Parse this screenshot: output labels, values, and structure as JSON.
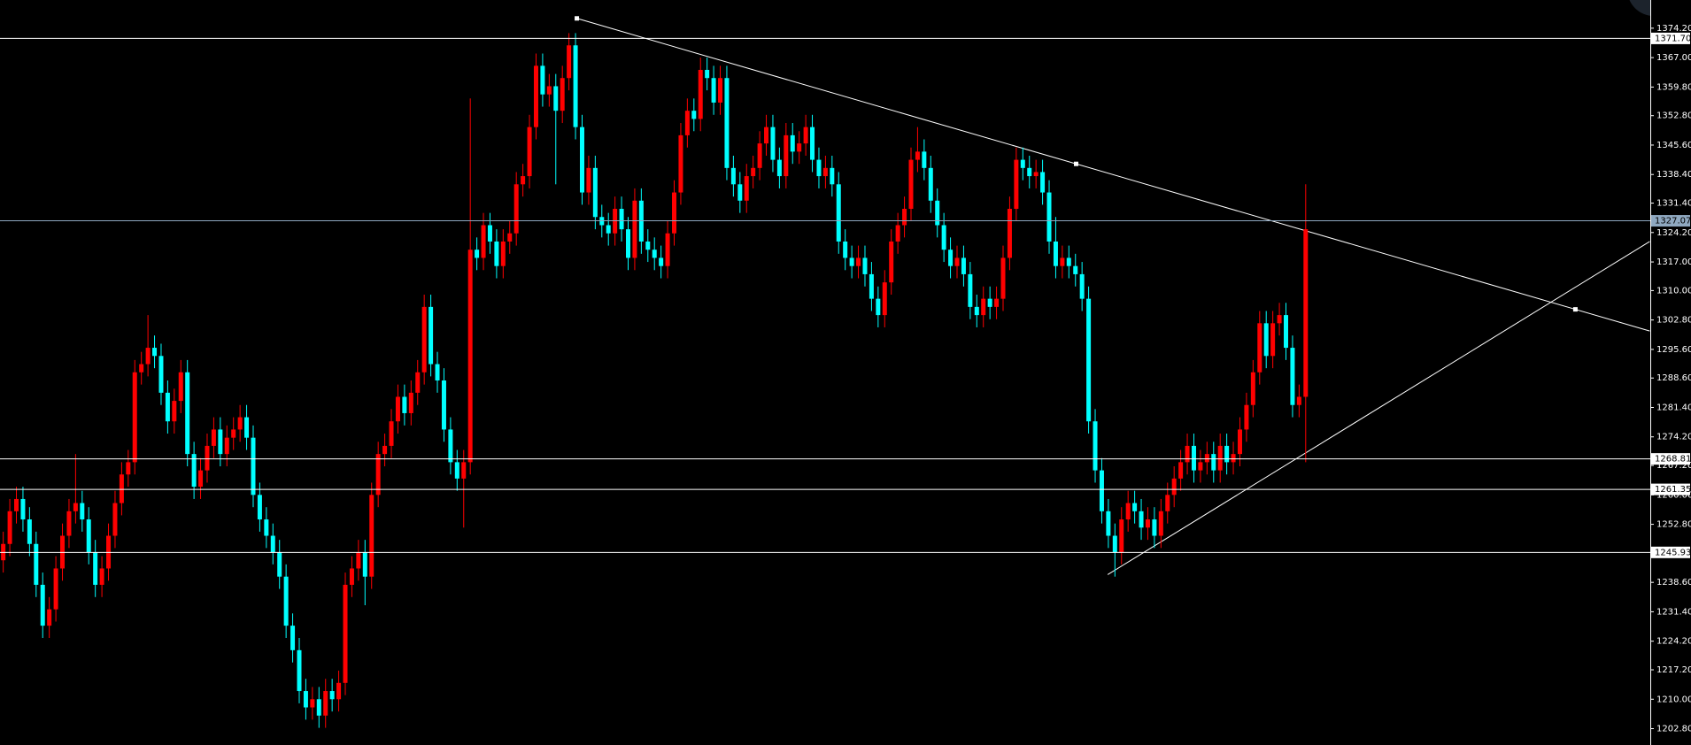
{
  "chart_data": {
    "type": "candlestick",
    "up_color": "#ff0000",
    "down_color": "#00ffff",
    "background": "#000000",
    "grid": false,
    "ylim": [
      1198.8,
      1381.1
    ],
    "yticks": [
      {
        "value": 1374.2,
        "label": "1374.20"
      },
      {
        "value": 1367,
        "label": "1367.00"
      },
      {
        "value": 1359.8,
        "label": "1359.80"
      },
      {
        "value": 1352.8,
        "label": "1352.80"
      },
      {
        "value": 1345.6,
        "label": "1345.60"
      },
      {
        "value": 1338.4,
        "label": "1338.40"
      },
      {
        "value": 1331.4,
        "label": "1331.40"
      },
      {
        "value": 1324.2,
        "label": "1324.20"
      },
      {
        "value": 1317,
        "label": "1317.00"
      },
      {
        "value": 1310,
        "label": "1310.00"
      },
      {
        "value": 1302.8,
        "label": "1302.80"
      },
      {
        "value": 1295.6,
        "label": "1295.60"
      },
      {
        "value": 1288.6,
        "label": "1288.60"
      },
      {
        "value": 1281.4,
        "label": "1281.40"
      },
      {
        "value": 1274.2,
        "label": "1274.20"
      },
      {
        "value": 1267.2,
        "label": "1267.20"
      },
      {
        "value": 1260,
        "label": "1260.00"
      },
      {
        "value": 1252.8,
        "label": "1252.80"
      },
      {
        "value": 1238.6,
        "label": "1238.60"
      },
      {
        "value": 1231.4,
        "label": "1231.40"
      },
      {
        "value": 1224.2,
        "label": "1224.20"
      },
      {
        "value": 1217.2,
        "label": "1217.20"
      },
      {
        "value": 1210,
        "label": "1210.00"
      },
      {
        "value": 1202.8,
        "label": "1202.80"
      }
    ],
    "levels": [
      {
        "value": 1371.7,
        "label": "1371.70",
        "color": "#ffffff"
      },
      {
        "value": 1327.07,
        "label": "1327.07",
        "color": "#8fa8c0"
      },
      {
        "value": 1268.81,
        "label": "1268.81",
        "color": "#ffffff"
      },
      {
        "value": 1261.35,
        "label": "1261.35",
        "color": "#ffffff"
      },
      {
        "value": 1245.93,
        "label": "1245.93",
        "color": "#ffffff"
      }
    ],
    "trendlines": [
      {
        "color": "#ffffff",
        "points": [
          [
            87.2,
            1376.6
          ],
          [
            250.3,
            1300.1
          ]
        ],
        "anchors": [
          [
            87.2,
            1376.6
          ],
          [
            163.1,
            1341.0
          ],
          [
            239.0,
            1305.4
          ]
        ]
      },
      {
        "color": "#ffffff",
        "points": [
          [
            167.9,
            1240.5
          ],
          [
            250.3,
            1322.0
          ]
        ]
      }
    ],
    "values": [
      [
        1244,
        1251,
        1241,
        1248
      ],
      [
        1248,
        1259,
        1245,
        1256
      ],
      [
        1256,
        1262,
        1253,
        1259
      ],
      [
        1259,
        1262,
        1251,
        1254
      ],
      [
        1254,
        1257,
        1245,
        1248
      ],
      [
        1248,
        1251,
        1235,
        1238
      ],
      [
        1238,
        1241,
        1225,
        1228
      ],
      [
        1228,
        1235,
        1225,
        1232
      ],
      [
        1232,
        1245,
        1229,
        1242
      ],
      [
        1242,
        1253,
        1239,
        1250
      ],
      [
        1250,
        1259,
        1247,
        1256
      ],
      [
        1256,
        1270,
        1253,
        1258
      ],
      [
        1258,
        1261,
        1251,
        1254
      ],
      [
        1254,
        1257,
        1243,
        1246
      ],
      [
        1246,
        1249,
        1235,
        1238
      ],
      [
        1238,
        1245,
        1235,
        1242
      ],
      [
        1242,
        1253,
        1239,
        1250
      ],
      [
        1250,
        1261,
        1247,
        1258
      ],
      [
        1258,
        1268,
        1255,
        1265
      ],
      [
        1265,
        1271,
        1262,
        1268
      ],
      [
        1268,
        1293,
        1265,
        1290
      ],
      [
        1290,
        1295,
        1287,
        1292
      ],
      [
        1292,
        1304,
        1289,
        1296
      ],
      [
        1296,
        1299,
        1291,
        1294
      ],
      [
        1294,
        1297,
        1282,
        1285
      ],
      [
        1285,
        1288,
        1275,
        1278
      ],
      [
        1278,
        1286,
        1275,
        1283
      ],
      [
        1283,
        1293,
        1280,
        1290
      ],
      [
        1290,
        1293,
        1267,
        1270
      ],
      [
        1270,
        1273,
        1259,
        1262
      ],
      [
        1262,
        1269,
        1259,
        1266
      ],
      [
        1266,
        1275,
        1263,
        1272
      ],
      [
        1272,
        1279,
        1269,
        1276
      ],
      [
        1276,
        1279,
        1267,
        1270
      ],
      [
        1270,
        1277,
        1267,
        1274
      ],
      [
        1274,
        1279,
        1271,
        1276
      ],
      [
        1276,
        1282,
        1273,
        1279
      ],
      [
        1279,
        1282,
        1271,
        1274
      ],
      [
        1274,
        1277,
        1257,
        1260
      ],
      [
        1260,
        1263,
        1251,
        1254
      ],
      [
        1254,
        1257,
        1247,
        1250
      ],
      [
        1250,
        1253,
        1243,
        1246
      ],
      [
        1246,
        1249,
        1237,
        1240
      ],
      [
        1240,
        1243,
        1225,
        1228
      ],
      [
        1228,
        1231,
        1219,
        1222
      ],
      [
        1222,
        1225,
        1209,
        1212
      ],
      [
        1212,
        1215,
        1205,
        1208
      ],
      [
        1208,
        1213,
        1205,
        1210
      ],
      [
        1210,
        1213,
        1203,
        1206
      ],
      [
        1206,
        1215,
        1203,
        1212
      ],
      [
        1212,
        1215,
        1207,
        1210
      ],
      [
        1210,
        1217,
        1207,
        1214
      ],
      [
        1214,
        1241,
        1211,
        1238
      ],
      [
        1238,
        1245,
        1235,
        1242
      ],
      [
        1242,
        1249,
        1239,
        1246
      ],
      [
        1246,
        1249,
        1233,
        1240
      ],
      [
        1240,
        1263,
        1237,
        1260
      ],
      [
        1260,
        1273,
        1257,
        1270
      ],
      [
        1270,
        1275,
        1267,
        1272
      ],
      [
        1272,
        1281,
        1269,
        1278
      ],
      [
        1278,
        1287,
        1275,
        1284
      ],
      [
        1284,
        1287,
        1277,
        1280
      ],
      [
        1280,
        1288,
        1277,
        1285
      ],
      [
        1285,
        1293,
        1282,
        1290
      ],
      [
        1290,
        1309,
        1287,
        1306
      ],
      [
        1306,
        1309,
        1289,
        1292
      ],
      [
        1292,
        1295,
        1285,
        1288
      ],
      [
        1288,
        1291,
        1273,
        1276
      ],
      [
        1276,
        1279,
        1265,
        1268
      ],
      [
        1268,
        1271,
        1261,
        1264
      ],
      [
        1264,
        1271,
        1252,
        1268
      ],
      [
        1268,
        1357,
        1265,
        1320
      ],
      [
        1320,
        1323,
        1315,
        1318
      ],
      [
        1318,
        1329,
        1315,
        1326
      ],
      [
        1326,
        1329,
        1319,
        1322
      ],
      [
        1322,
        1325,
        1313,
        1316
      ],
      [
        1316,
        1325,
        1313,
        1322
      ],
      [
        1322,
        1327,
        1319,
        1324
      ],
      [
        1324,
        1339,
        1321,
        1336
      ],
      [
        1336,
        1341,
        1333,
        1338
      ],
      [
        1338,
        1353,
        1335,
        1350
      ],
      [
        1350,
        1368,
        1347,
        1365
      ],
      [
        1365,
        1368,
        1355,
        1358
      ],
      [
        1358,
        1363,
        1355,
        1360
      ],
      [
        1360,
        1363,
        1336,
        1354
      ],
      [
        1354,
        1365,
        1351,
        1362
      ],
      [
        1362,
        1373,
        1359,
        1370
      ],
      [
        1370,
        1373,
        1347,
        1350
      ],
      [
        1350,
        1353,
        1331,
        1334
      ],
      [
        1334,
        1343,
        1331,
        1340
      ],
      [
        1340,
        1343,
        1325,
        1328
      ],
      [
        1328,
        1331,
        1323,
        1326
      ],
      [
        1326,
        1329,
        1321,
        1324
      ],
      [
        1324,
        1333,
        1321,
        1330
      ],
      [
        1330,
        1333,
        1322,
        1325
      ],
      [
        1325,
        1328,
        1315,
        1318
      ],
      [
        1318,
        1335,
        1315,
        1332
      ],
      [
        1332,
        1335,
        1319,
        1322
      ],
      [
        1322,
        1325,
        1317,
        1320
      ],
      [
        1320,
        1323,
        1315,
        1318
      ],
      [
        1318,
        1321,
        1313,
        1316
      ],
      [
        1316,
        1327,
        1313,
        1324
      ],
      [
        1324,
        1337,
        1321,
        1334
      ],
      [
        1334,
        1351,
        1331,
        1348
      ],
      [
        1348,
        1357,
        1345,
        1354
      ],
      [
        1354,
        1357,
        1349,
        1352
      ],
      [
        1352,
        1367,
        1349,
        1364
      ],
      [
        1364,
        1367,
        1359,
        1362
      ],
      [
        1362,
        1365,
        1353,
        1356
      ],
      [
        1356,
        1365,
        1353,
        1362
      ],
      [
        1362,
        1365,
        1337,
        1340
      ],
      [
        1340,
        1343,
        1333,
        1336
      ],
      [
        1336,
        1339,
        1329,
        1332
      ],
      [
        1332,
        1341,
        1329,
        1338
      ],
      [
        1338,
        1343,
        1335,
        1340
      ],
      [
        1340,
        1349,
        1337,
        1346
      ],
      [
        1346,
        1353,
        1343,
        1350
      ],
      [
        1350,
        1353,
        1339,
        1342
      ],
      [
        1342,
        1345,
        1335,
        1338
      ],
      [
        1338,
        1351,
        1335,
        1348
      ],
      [
        1348,
        1351,
        1341,
        1344
      ],
      [
        1344,
        1349,
        1341,
        1346
      ],
      [
        1346,
        1353,
        1343,
        1350
      ],
      [
        1350,
        1353,
        1339,
        1342
      ],
      [
        1342,
        1345,
        1335,
        1338
      ],
      [
        1338,
        1343,
        1335,
        1340
      ],
      [
        1340,
        1343,
        1333,
        1336
      ],
      [
        1336,
        1339,
        1319,
        1322
      ],
      [
        1322,
        1325,
        1315,
        1318
      ],
      [
        1318,
        1321,
        1313,
        1316
      ],
      [
        1316,
        1321,
        1313,
        1318
      ],
      [
        1318,
        1321,
        1311,
        1314
      ],
      [
        1314,
        1317,
        1305,
        1308
      ],
      [
        1308,
        1311,
        1301,
        1304
      ],
      [
        1304,
        1315,
        1301,
        1312
      ],
      [
        1312,
        1325,
        1309,
        1322
      ],
      [
        1322,
        1329,
        1319,
        1326
      ],
      [
        1326,
        1333,
        1323,
        1330
      ],
      [
        1330,
        1345,
        1327,
        1342
      ],
      [
        1342,
        1350,
        1339,
        1344
      ],
      [
        1344,
        1347,
        1337,
        1340
      ],
      [
        1340,
        1343,
        1329,
        1332
      ],
      [
        1332,
        1335,
        1323,
        1326
      ],
      [
        1326,
        1329,
        1317,
        1320
      ],
      [
        1320,
        1323,
        1313,
        1316
      ],
      [
        1316,
        1321,
        1313,
        1318
      ],
      [
        1318,
        1321,
        1311,
        1314
      ],
      [
        1314,
        1317,
        1303,
        1306
      ],
      [
        1306,
        1309,
        1301,
        1304
      ],
      [
        1304,
        1311,
        1301,
        1308
      ],
      [
        1308,
        1311,
        1303,
        1306
      ],
      [
        1306,
        1311,
        1303,
        1308
      ],
      [
        1308,
        1321,
        1305,
        1318
      ],
      [
        1318,
        1333,
        1315,
        1330
      ],
      [
        1330,
        1345,
        1327,
        1342
      ],
      [
        1342,
        1345,
        1337,
        1340
      ],
      [
        1340,
        1343,
        1335,
        1338
      ],
      [
        1338,
        1342,
        1335,
        1339
      ],
      [
        1339,
        1342,
        1331,
        1334
      ],
      [
        1334,
        1337,
        1319,
        1322
      ],
      [
        1322,
        1328,
        1313,
        1316
      ],
      [
        1316,
        1321,
        1313,
        1318
      ],
      [
        1318,
        1321,
        1313,
        1316
      ],
      [
        1316,
        1319,
        1311,
        1314
      ],
      [
        1314,
        1317,
        1305,
        1308
      ],
      [
        1308,
        1311,
        1275,
        1278
      ],
      [
        1278,
        1281,
        1263,
        1266
      ],
      [
        1266,
        1269,
        1253,
        1256
      ],
      [
        1256,
        1259,
        1247,
        1250
      ],
      [
        1250,
        1253,
        1240,
        1246
      ],
      [
        1246,
        1257,
        1243,
        1254
      ],
      [
        1254,
        1261,
        1251,
        1258
      ],
      [
        1258,
        1261,
        1253,
        1256
      ],
      [
        1256,
        1259,
        1249,
        1252
      ],
      [
        1252,
        1257,
        1249,
        1254
      ],
      [
        1254,
        1257,
        1247,
        1250
      ],
      [
        1250,
        1259,
        1247,
        1256
      ],
      [
        1256,
        1263,
        1253,
        1260
      ],
      [
        1260,
        1267,
        1257,
        1264
      ],
      [
        1264,
        1271,
        1261,
        1268
      ],
      [
        1268,
        1275,
        1265,
        1272
      ],
      [
        1272,
        1275,
        1263,
        1266
      ],
      [
        1266,
        1271,
        1263,
        1268
      ],
      [
        1268,
        1273,
        1265,
        1270
      ],
      [
        1270,
        1273,
        1263,
        1266
      ],
      [
        1266,
        1275,
        1263,
        1272
      ],
      [
        1272,
        1275,
        1265,
        1268
      ],
      [
        1268,
        1273,
        1265,
        1270
      ],
      [
        1270,
        1279,
        1267,
        1276
      ],
      [
        1276,
        1285,
        1273,
        1282
      ],
      [
        1282,
        1293,
        1279,
        1290
      ],
      [
        1290,
        1305,
        1287,
        1302
      ],
      [
        1302,
        1305,
        1291,
        1294
      ],
      [
        1294,
        1305,
        1291,
        1302
      ],
      [
        1302,
        1307,
        1299,
        1304
      ],
      [
        1304,
        1307,
        1293,
        1296
      ],
      [
        1296,
        1299,
        1279,
        1282
      ],
      [
        1282,
        1287,
        1279,
        1284
      ],
      [
        1284,
        1336,
        1268,
        1325
      ]
    ]
  }
}
